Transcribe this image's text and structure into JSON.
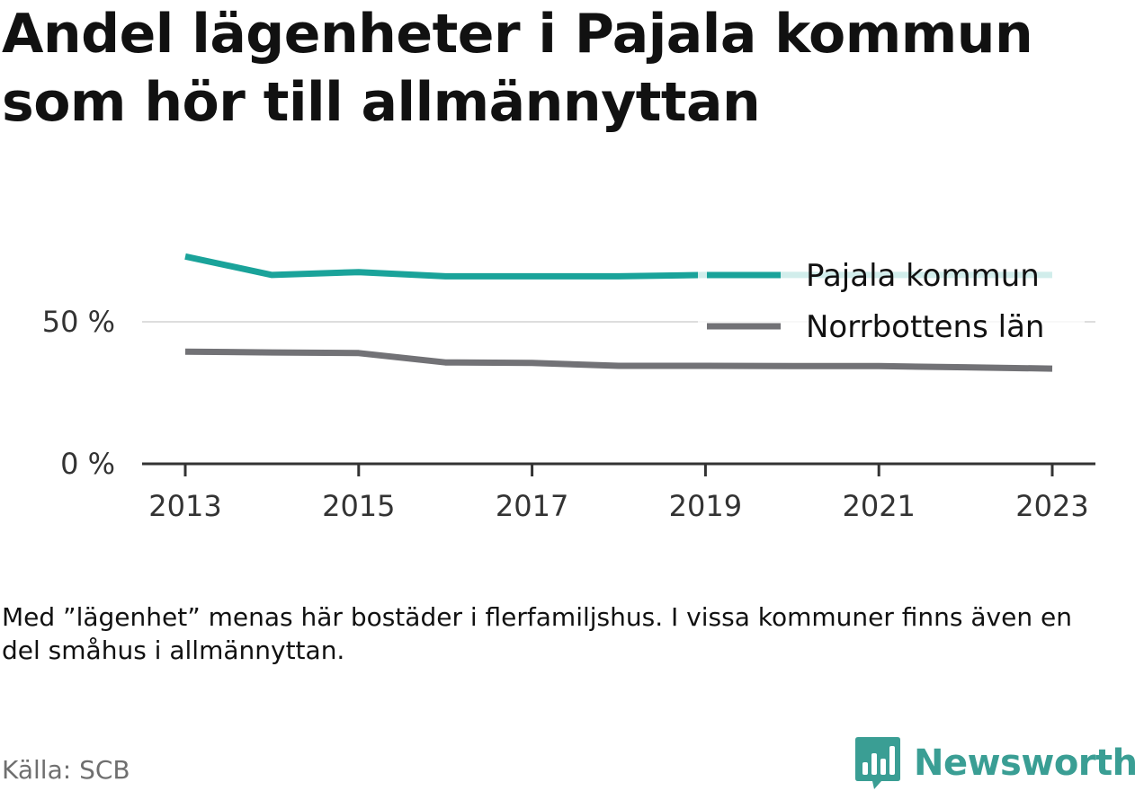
{
  "title": "Andel lägenheter i Pajala kommun som hör till allmännyttan",
  "note": "Med ”lägenhet” menas här bostäder i flerfamiljshus. I vissa kommuner finns även en del småhus i allmännyttan.",
  "source": "Källa: SCB",
  "brand": {
    "name": "Newsworthy",
    "icon": "newsworthy-logo-icon"
  },
  "chart_data": {
    "type": "line",
    "x": [
      2013,
      2014,
      2015,
      2016,
      2017,
      2018,
      2019,
      2020,
      2021,
      2022,
      2023
    ],
    "x_tick_values": [
      2013,
      2015,
      2017,
      2019,
      2021,
      2023
    ],
    "x_tick_labels": [
      "2013",
      "2015",
      "2017",
      "2019",
      "2021",
      "2023"
    ],
    "y_tick_values": [
      0,
      50
    ],
    "y_tick_labels": [
      "0 %",
      "50 %"
    ],
    "ylim": [
      0,
      80
    ],
    "grid": true,
    "legend_position": "top-right",
    "series": [
      {
        "name": "Pajala kommun",
        "color": "#1aa39a",
        "values": [
          73,
          66.5,
          67.5,
          66,
          66,
          66,
          66.5,
          66.5,
          66.5,
          66.5,
          66.5
        ]
      },
      {
        "name": "Norrbottens län",
        "color": "#727276",
        "values": [
          39.5,
          39.2,
          39,
          35.7,
          35.5,
          34.5,
          34.5,
          34.4,
          34.4,
          34,
          33.5
        ]
      }
    ]
  }
}
